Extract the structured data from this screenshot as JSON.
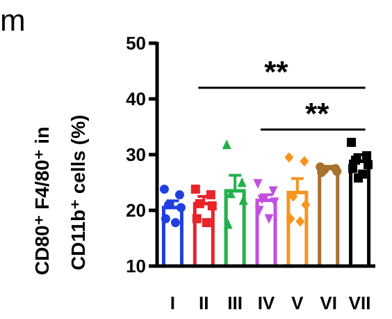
{
  "panel_label": "m",
  "chart_data": {
    "type": "bar",
    "ylabel_line1": "CD80⁺ F4/80⁺ in",
    "ylabel_line2": "CD11b⁺ cells (%)",
    "ylim": [
      10,
      50
    ],
    "yticks": [
      "10",
      "20",
      "30",
      "40",
      "50"
    ],
    "categories": [
      "I",
      "II",
      "III",
      "IV",
      "V",
      "VI",
      "VII"
    ],
    "values": [
      20.5,
      21.2,
      23.5,
      21.8,
      23.2,
      27.5,
      28.8
    ],
    "errors": [
      1.2,
      1.3,
      2.8,
      1.0,
      2.5,
      0.4,
      1.2
    ],
    "colors": [
      "#1f3fe0",
      "#e8232a",
      "#22b14c",
      "#c24fe0",
      "#f7941d",
      "#a8712f",
      "#000000"
    ],
    "markers": [
      "circle",
      "square",
      "triangle",
      "triangle-down",
      "diamond",
      "circle",
      "square"
    ],
    "points": [
      [
        23.8,
        22.8,
        21.0,
        20.5,
        18.5,
        17.8
      ],
      [
        23.8,
        22.8,
        21.2,
        20.8,
        18.5,
        17.8
      ],
      [
        31.8,
        25.0,
        23.0,
        21.8,
        17.5
      ],
      [
        24.8,
        23.5,
        22.0,
        21.5,
        20.0,
        18.5
      ],
      [
        29.5,
        28.8,
        22.5,
        21.0,
        18.5,
        18.0
      ],
      [
        27.8,
        27.5,
        27.3,
        27.0,
        26.8
      ],
      [
        32.2,
        29.8,
        29.0,
        28.2,
        27.5,
        26.5,
        25.8
      ]
    ],
    "significance": [
      {
        "label": "**",
        "from": "II",
        "to": "VII"
      },
      {
        "label": "**",
        "from": "IV",
        "to": "VII"
      }
    ]
  }
}
